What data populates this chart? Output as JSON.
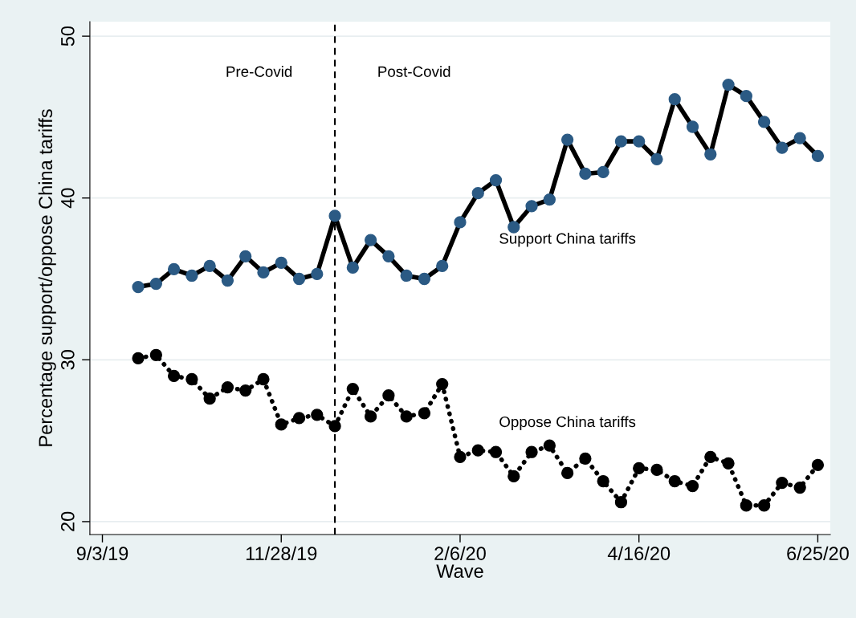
{
  "chart_data": {
    "type": "line",
    "xlabel": "Wave",
    "ylabel": "Percentage support/oppose China tariffs",
    "categories": [
      "9/3/19",
      null,
      null,
      null,
      null,
      null,
      null,
      null,
      null,
      null,
      "11/28/19",
      null,
      null,
      null,
      null,
      null,
      null,
      null,
      null,
      null,
      "2/6/20",
      null,
      null,
      null,
      null,
      null,
      null,
      null,
      null,
      null,
      "4/16/20",
      null,
      null,
      null,
      null,
      null,
      null,
      null,
      null,
      null,
      "6/25/20"
    ],
    "series": [
      {
        "name": "Support China tariffs",
        "color": "#2b5a84",
        "line_style": "solid",
        "values": [
          null,
          null,
          34.5,
          34.7,
          35.6,
          35.2,
          35.8,
          34.9,
          36.4,
          35.4,
          36.0,
          35.0,
          35.3,
          38.9,
          35.7,
          37.4,
          36.4,
          35.2,
          35.0,
          35.8,
          38.5,
          40.3,
          41.1,
          38.2,
          39.5,
          39.9,
          43.6,
          41.5,
          41.6,
          43.5,
          43.5,
          42.4,
          46.1,
          44.4,
          42.7,
          47.0,
          46.3,
          44.7,
          43.1,
          43.7,
          42.6
        ]
      },
      {
        "name": "Oppose China tariffs",
        "color": "#000000",
        "line_style": "dotted",
        "values": [
          null,
          null,
          30.1,
          30.3,
          29.0,
          28.8,
          27.6,
          28.3,
          28.1,
          28.8,
          26.0,
          26.4,
          26.6,
          25.9,
          28.2,
          26.5,
          27.8,
          26.5,
          26.7,
          28.5,
          24.0,
          24.4,
          24.3,
          22.8,
          24.3,
          24.7,
          23.0,
          23.9,
          22.5,
          21.2,
          23.3,
          23.2,
          22.5,
          22.2,
          24.0,
          23.6,
          21.0,
          21.0,
          22.4,
          22.1,
          23.5
        ]
      }
    ],
    "marker": "circle",
    "ylim": [
      19.2,
      50.9
    ],
    "yticks": [
      20,
      30,
      40,
      50
    ],
    "grid": "y",
    "annotations": [
      "Pre-Covid",
      "Post-Covid"
    ]
  }
}
